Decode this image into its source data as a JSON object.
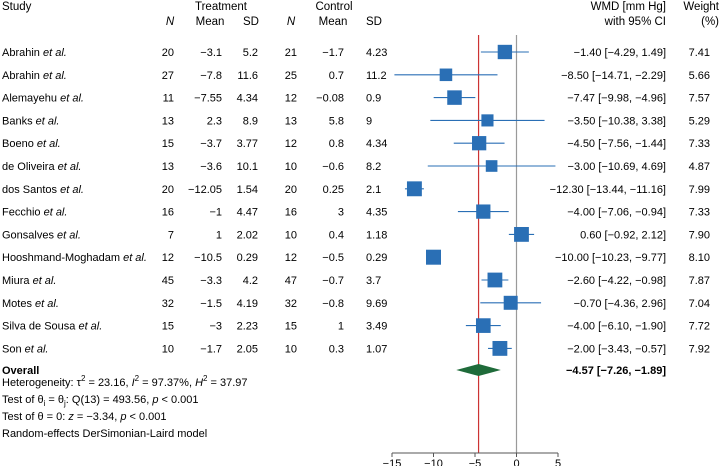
{
  "headers": {
    "study": "Study",
    "treatment": "Treatment",
    "control": "Control",
    "n": "N",
    "mean": "Mean",
    "sd": "SD",
    "wmd_line1": "WMD [mm Hg]",
    "wmd_line2": "with 95% CI",
    "weight_line1": "Weight",
    "weight_line2": "(%)"
  },
  "colors": {
    "marker": "#2a6fb5",
    "overall_diamond": "#1f6b3a",
    "overall_line": "#cc3333",
    "null_line": "#9a9a9a",
    "text": "#1a1a1a"
  },
  "chart_data": {
    "type": "forest",
    "xlim": [
      -15,
      5
    ],
    "xticks": [
      -15,
      -10,
      -5,
      0,
      5
    ],
    "null_value": 0,
    "rows": [
      {
        "study": "Abrahin",
        "suffix": " et al.",
        "t_n": "20",
        "t_mean": "−3.1",
        "t_sd": "5.2",
        "c_n": "21",
        "c_mean": "−1.7",
        "c_sd": "4.23",
        "wmd": -1.4,
        "lo": -4.29,
        "hi": 1.49,
        "ci_text": "−1.40 [−4.29, 1.49]",
        "weight": 7.41,
        "weight_text": "7.41"
      },
      {
        "study": "Abrahin",
        "suffix": " et al.",
        "t_n": "27",
        "t_mean": "−7.8",
        "t_sd": "11.6",
        "c_n": "25",
        "c_mean": "0.7",
        "c_sd": "11.2",
        "wmd": -8.5,
        "lo": -14.71,
        "hi": -2.29,
        "ci_text": "−8.50 [−14.71, −2.29]",
        "weight": 5.66,
        "weight_text": "5.66"
      },
      {
        "study": "Alemayehu",
        "suffix": " et al.",
        "t_n": "11",
        "t_mean": "−7.55",
        "t_sd": "4.34",
        "c_n": "12",
        "c_mean": "−0.08",
        "c_sd": "0.9",
        "wmd": -7.47,
        "lo": -9.98,
        "hi": -4.96,
        "ci_text": "−7.47 [−9.98, −4.96]",
        "weight": 7.57,
        "weight_text": "7.57"
      },
      {
        "study": "Banks",
        "suffix": " et al.",
        "t_n": "13",
        "t_mean": "2.3",
        "t_sd": "8.9",
        "c_n": "13",
        "c_mean": "5.8",
        "c_sd": "9",
        "wmd": -3.5,
        "lo": -10.38,
        "hi": 3.38,
        "ci_text": "−3.50 [−10.38, 3.38]",
        "weight": 5.29,
        "weight_text": "5.29"
      },
      {
        "study": "Boeno",
        "suffix": " et al.",
        "t_n": "15",
        "t_mean": "−3.7",
        "t_sd": "3.77",
        "c_n": "12",
        "c_mean": "0.8",
        "c_sd": "4.34",
        "wmd": -4.5,
        "lo": -7.56,
        "hi": -1.44,
        "ci_text": "−4.50 [−7.56, −1.44]",
        "weight": 7.33,
        "weight_text": "7.33"
      },
      {
        "study": "de Oliveira",
        "suffix": " et al.",
        "t_n": "13",
        "t_mean": "−3.6",
        "t_sd": "10.1",
        "c_n": "10",
        "c_mean": "−0.6",
        "c_sd": "8.2",
        "wmd": -3.0,
        "lo": -10.69,
        "hi": 4.69,
        "ci_text": "−3.00 [−10.69, 4.69]",
        "weight": 4.87,
        "weight_text": "4.87"
      },
      {
        "study": "dos Santos",
        "suffix": " et al.",
        "t_n": "20",
        "t_mean": "−12.05",
        "t_sd": "1.54",
        "c_n": "20",
        "c_mean": "0.25",
        "c_sd": "2.1",
        "wmd": -12.3,
        "lo": -13.44,
        "hi": -11.16,
        "ci_text": "−12.30 [−13.44, −11.16]",
        "weight": 7.99,
        "weight_text": "7.99"
      },
      {
        "study": "Fecchio",
        "suffix": " et al.",
        "t_n": "16",
        "t_mean": "−1",
        "t_sd": "4.47",
        "c_n": "16",
        "c_mean": "3",
        "c_sd": "4.35",
        "wmd": -4.0,
        "lo": -7.06,
        "hi": -0.94,
        "ci_text": "−4.00 [−7.06, −0.94]",
        "weight": 7.33,
        "weight_text": "7.33"
      },
      {
        "study": "Gonsalves",
        "suffix": " et al.",
        "t_n": "7",
        "t_mean": "1",
        "t_sd": "2.02",
        "c_n": "10",
        "c_mean": "0.4",
        "c_sd": "1.18",
        "wmd": 0.6,
        "lo": -0.92,
        "hi": 2.12,
        "ci_text": "0.60 [−0.92, 2.12]",
        "weight": 7.9,
        "weight_text": "7.90"
      },
      {
        "study": "Hooshmand-Moghadam",
        "suffix": " et al.",
        "t_n": "12",
        "t_mean": "−10.5",
        "t_sd": "0.29",
        "c_n": "12",
        "c_mean": "−0.5",
        "c_sd": "0.29",
        "wmd": -10.0,
        "lo": -10.23,
        "hi": -9.77,
        "ci_text": "−10.00 [−10.23, −9.77]",
        "weight": 8.1,
        "weight_text": "8.10"
      },
      {
        "study": "Miura",
        "suffix": " et al.",
        "t_n": "45",
        "t_mean": "−3.3",
        "t_sd": "4.2",
        "c_n": "47",
        "c_mean": "−0.7",
        "c_sd": "3.7",
        "wmd": -2.6,
        "lo": -4.22,
        "hi": -0.98,
        "ci_text": "−2.60 [−4.22, −0.98]",
        "weight": 7.87,
        "weight_text": "7.87"
      },
      {
        "study": "Motes",
        "suffix": " et al.",
        "t_n": "32",
        "t_mean": "−1.5",
        "t_sd": "4.19",
        "c_n": "32",
        "c_mean": "−0.8",
        "c_sd": "9.69",
        "wmd": -0.7,
        "lo": -4.36,
        "hi": 2.96,
        "ci_text": "−0.70 [−4.36, 2.96]",
        "weight": 7.04,
        "weight_text": "7.04"
      },
      {
        "study": "Silva de Sousa",
        "suffix": " et al.",
        "t_n": "15",
        "t_mean": "−3",
        "t_sd": "2.23",
        "c_n": "15",
        "c_mean": "1",
        "c_sd": "3.49",
        "wmd": -4.0,
        "lo": -6.1,
        "hi": -1.9,
        "ci_text": "−4.00 [−6.10, −1.90]",
        "weight": 7.72,
        "weight_text": "7.72"
      },
      {
        "study": "Son",
        "suffix": " et al.",
        "t_n": "10",
        "t_mean": "−1.7",
        "t_sd": "2.05",
        "c_n": "10",
        "c_mean": "0.3",
        "c_sd": "1.07",
        "wmd": -2.0,
        "lo": -3.43,
        "hi": -0.57,
        "ci_text": "−2.00 [−3.43, −0.57]",
        "weight": 7.92,
        "weight_text": "7.92"
      }
    ],
    "overall": {
      "label": "Overall",
      "wmd": -4.57,
      "lo": -7.26,
      "hi": -1.89,
      "ci_text": "−4.57 [−7.26, −1.89]"
    }
  },
  "footnotes": {
    "heterogeneity": {
      "prefix": "Heterogeneity: τ",
      "tau_sup": "2",
      "mid1": " = 23.16, ",
      "i": "I",
      "i_sup": "2",
      "mid2": " = 97.37%, ",
      "h": "H",
      "h_sup": "2",
      "end": " = 37.97"
    },
    "test_equal": {
      "prefix": "Test of θ",
      "sub1": "i",
      "mid": " = θ",
      "sub2": "j",
      "rest": ": Q(13) = 493.56, ",
      "p": "p",
      "end": " < 0.001"
    },
    "test_zero": {
      "prefix": "Test of θ = 0: ",
      "z": "z",
      "mid": " = −3.34, ",
      "p": "p",
      "end": " < 0.001"
    },
    "model": "Random-effects DerSimonian-Laird model"
  }
}
